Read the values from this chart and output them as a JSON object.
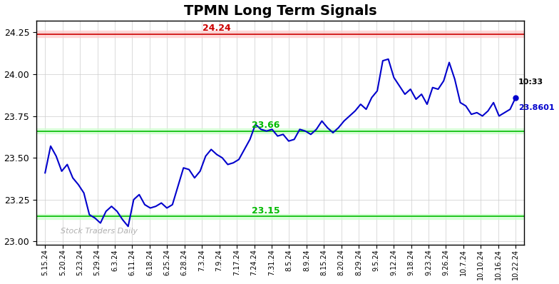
{
  "title": "TPMN Long Term Signals",
  "title_fontsize": 14,
  "title_fontweight": "bold",
  "bg_color": "#ffffff",
  "plot_bg_color": "#ffffff",
  "line_color": "#0000cc",
  "line_width": 1.5,
  "resistance_value": 24.24,
  "resistance_color": "#cc0000",
  "resistance_bg": "#ffcccc",
  "support1_value": 23.66,
  "support1_color": "#00bb00",
  "support1_bg": "#ccffcc",
  "support2_value": 23.15,
  "support2_color": "#00bb00",
  "support2_bg": "#ccffcc",
  "watermark": "Stock Traders Daily",
  "watermark_color": "#b0b0b0",
  "annotation_time": "10:33",
  "annotation_price": "23.8601",
  "annotation_price_color": "#0000cc",
  "annotation_time_color": "#000000",
  "last_dot_color": "#0000cc",
  "ylim": [
    22.98,
    24.32
  ],
  "yticks": [
    23.0,
    23.25,
    23.5,
    23.75,
    24.0,
    24.25
  ],
  "x_labels": [
    "5.15.24",
    "5.20.24",
    "5.23.24",
    "5.29.24",
    "6.3.24",
    "6.11.24",
    "6.18.24",
    "6.25.24",
    "6.28.24",
    "7.3.24",
    "7.9.24",
    "7.17.24",
    "7.24.24",
    "7.31.24",
    "8.5.24",
    "8.9.24",
    "8.15.24",
    "8.20.24",
    "8.29.24",
    "9.5.24",
    "9.12.24",
    "9.18.24",
    "9.23.24",
    "9.26.24",
    "10.7.24",
    "10.10.24",
    "10.16.24",
    "10.22.24"
  ],
  "prices": [
    23.41,
    23.57,
    23.51,
    23.42,
    23.46,
    23.38,
    23.34,
    23.29,
    23.16,
    23.14,
    23.11,
    23.18,
    23.21,
    23.18,
    23.13,
    23.09,
    23.25,
    23.28,
    23.22,
    23.2,
    23.21,
    23.23,
    23.2,
    23.22,
    23.33,
    23.44,
    23.43,
    23.38,
    23.42,
    23.51,
    23.55,
    23.52,
    23.5,
    23.46,
    23.47,
    23.49,
    23.55,
    23.61,
    23.7,
    23.67,
    23.66,
    23.67,
    23.63,
    23.64,
    23.6,
    23.61,
    23.67,
    23.66,
    23.64,
    23.67,
    23.72,
    23.68,
    23.65,
    23.68,
    23.72,
    23.75,
    23.78,
    23.82,
    23.79,
    23.86,
    23.9,
    24.08,
    24.09,
    23.98,
    23.93,
    23.88,
    23.91,
    23.85,
    23.88,
    23.82,
    23.92,
    23.91,
    23.96,
    24.07,
    23.97,
    23.83,
    23.81,
    23.76,
    23.77,
    23.75,
    23.78,
    23.83,
    23.75,
    23.77,
    23.79,
    23.8601
  ]
}
